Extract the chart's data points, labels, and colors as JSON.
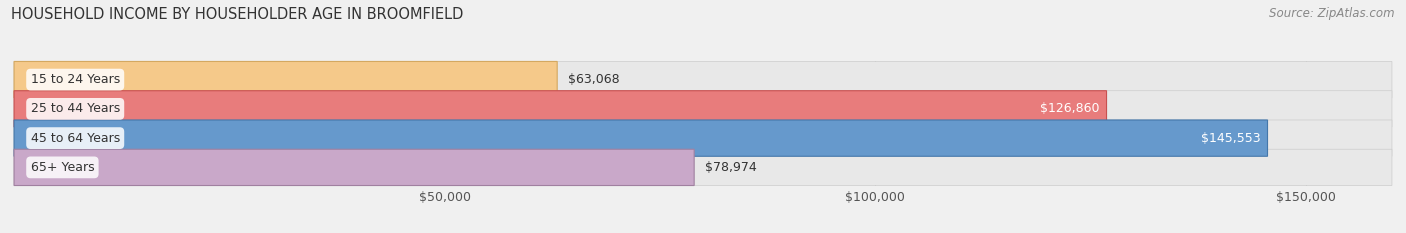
{
  "title": "HOUSEHOLD INCOME BY HOUSEHOLDER AGE IN BROOMFIELD",
  "source": "Source: ZipAtlas.com",
  "categories": [
    "15 to 24 Years",
    "25 to 44 Years",
    "45 to 64 Years",
    "65+ Years"
  ],
  "values": [
    63068,
    126860,
    145553,
    78974
  ],
  "bar_colors": [
    "#f5c98a",
    "#e87c7c",
    "#6699cc",
    "#c9a8c9"
  ],
  "bar_edge_colors": [
    "#d4a860",
    "#c85050",
    "#4477aa",
    "#a080a0"
  ],
  "label_colors": [
    "#555555",
    "#ffffff",
    "#ffffff",
    "#555555"
  ],
  "background_color": "#f0f0f0",
  "bar_bg_color": "#e8e8e8",
  "xlim": [
    0,
    160000
  ],
  "xticks": [
    0,
    50000,
    100000,
    150000
  ],
  "xtick_labels": [
    "$50,000",
    "$100,000",
    "$150,000"
  ],
  "value_labels": [
    "$63,068",
    "$126,860",
    "$145,553",
    "$78,974"
  ],
  "bar_height": 0.62,
  "figsize": [
    14.06,
    2.33
  ],
  "dpi": 100
}
